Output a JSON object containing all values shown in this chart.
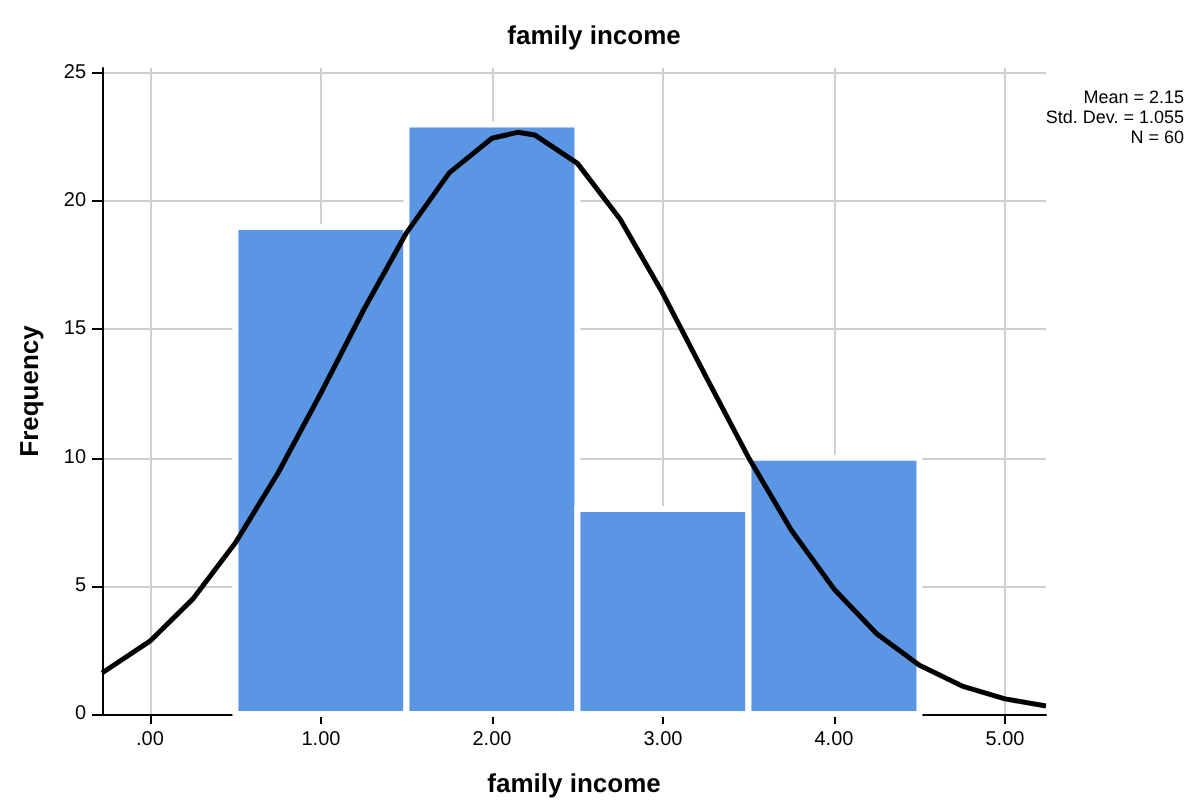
{
  "chart_data": {
    "type": "histogram",
    "title": "family income",
    "xlabel": "family income",
    "ylabel": "Frequency",
    "bins": [
      0.5,
      1.5,
      2.5,
      3.5,
      4.5
    ],
    "values": [
      19,
      23,
      8,
      10
    ],
    "color": "#5a96e3",
    "series": [
      {
        "type": "line",
        "color": "#000000",
        "x": [
          -0.28,
          0,
          0.25,
          0.5,
          0.75,
          1,
          1.25,
          1.5,
          1.75,
          2,
          2.15,
          2.25,
          2.5,
          2.75,
          3,
          3.25,
          3.5,
          3.75,
          4,
          4.25,
          4.5,
          4.75,
          5,
          5.24
        ],
        "values": [
          1.6,
          2.84,
          4.48,
          6.68,
          9.41,
          12.52,
          15.77,
          18.77,
          21.11,
          22.46,
          22.69,
          22.59,
          21.48,
          19.3,
          16.4,
          13.18,
          10.01,
          7.18,
          4.88,
          3.13,
          1.9,
          1.09,
          0.59,
          0.31
        ]
      }
    ],
    "xlim": [
      -0.28,
      5.24
    ],
    "ylim": [
      0,
      25.2
    ],
    "xticks": [
      {
        "value": 0,
        "label": ".00"
      },
      {
        "value": 1,
        "label": "1.00"
      },
      {
        "value": 2,
        "label": "2.00"
      },
      {
        "value": 3,
        "label": "3.00"
      },
      {
        "value": 4,
        "label": "4.00"
      },
      {
        "value": 5,
        "label": "5.00"
      }
    ],
    "yticks": [
      0,
      5,
      10,
      15,
      20,
      25
    ],
    "grid": true,
    "marker": "none",
    "annotations": [
      "Mean = 2.15",
      "Std. Dev. = 1.055",
      "N = 60"
    ]
  }
}
